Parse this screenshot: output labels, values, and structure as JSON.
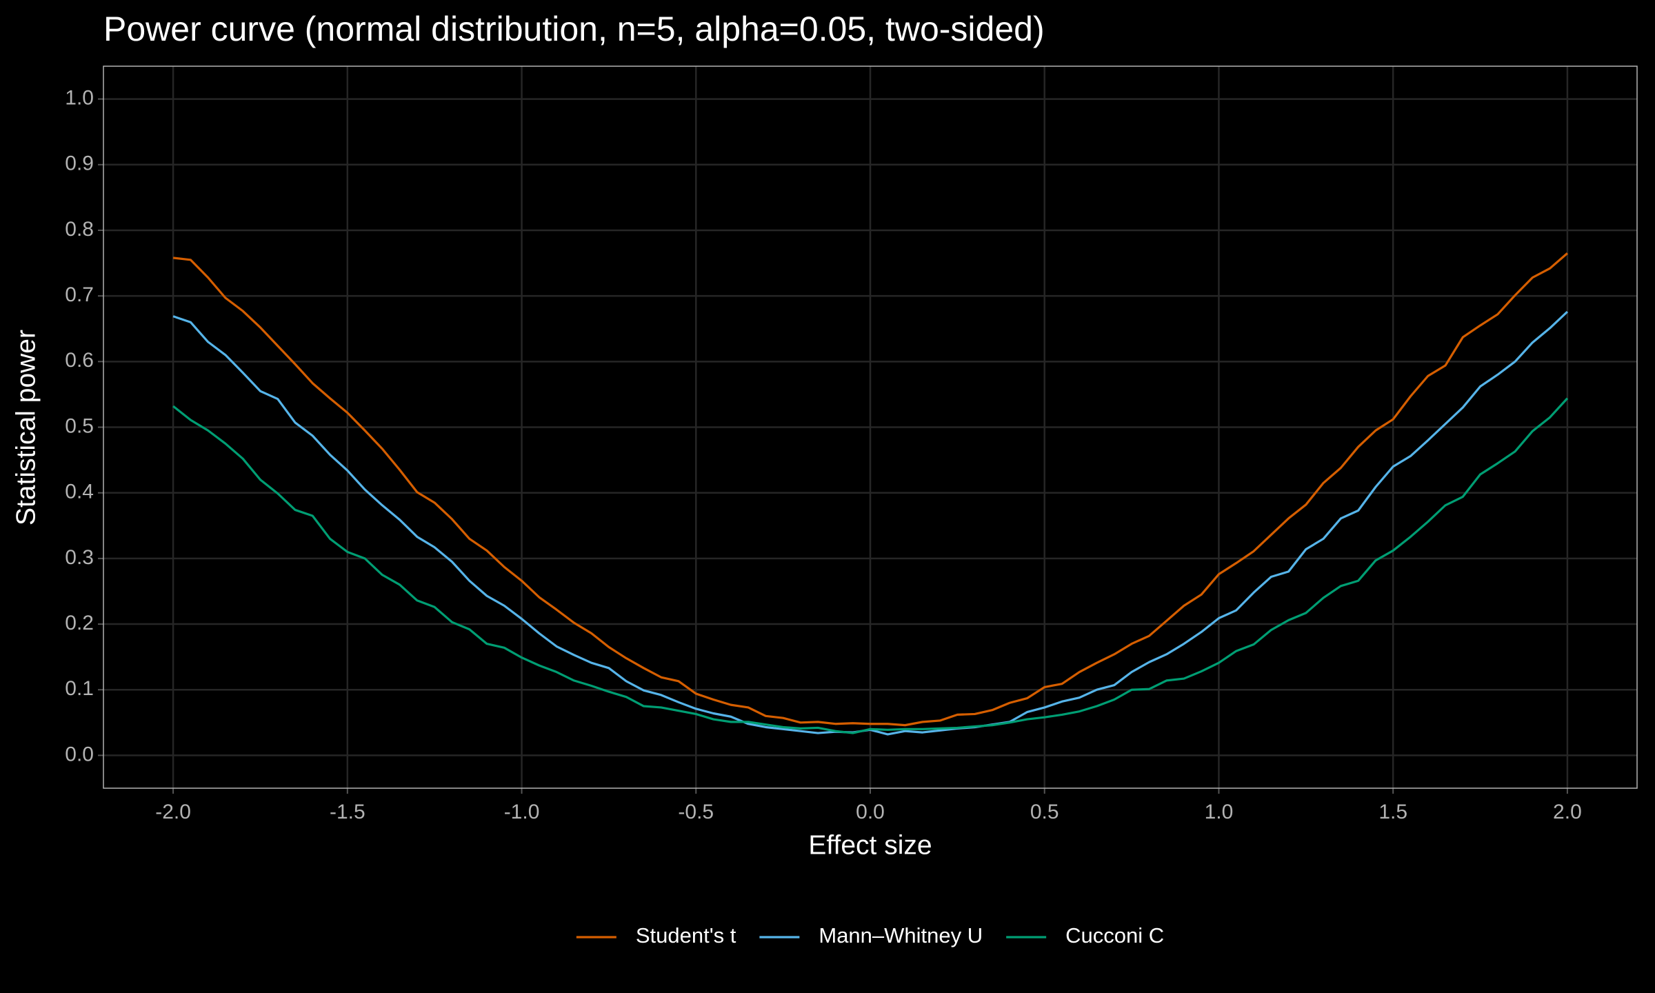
{
  "chart_data": {
    "type": "line",
    "title": "Power curve (normal distribution, n=5, alpha=0.05, two-sided)",
    "x_label": "Effect size",
    "y_label": "Statistical power",
    "x": [
      -2,
      -1.95,
      -1.9,
      -1.85,
      -1.8,
      -1.75,
      -1.7,
      -1.65,
      -1.6,
      -1.55,
      -1.5,
      -1.45,
      -1.4,
      -1.35,
      -1.3,
      -1.25,
      -1.2,
      -1.15,
      -1.1,
      -1.05,
      -1,
      -0.95,
      -0.9,
      -0.85,
      -0.8,
      -0.75,
      -0.7,
      -0.65,
      -0.6,
      -0.55,
      -0.5,
      -0.45,
      -0.4,
      -0.35,
      -0.3,
      -0.25,
      -0.2,
      -0.15,
      -0.1,
      -0.05,
      0,
      0.05,
      0.1,
      0.15,
      0.2,
      0.25,
      0.3,
      0.35,
      0.4,
      0.45,
      0.5,
      0.55,
      0.6,
      0.65,
      0.7,
      0.75,
      0.8,
      0.85,
      0.9,
      0.95,
      1,
      1.05,
      1.1,
      1.15,
      1.2,
      1.25,
      1.3,
      1.35,
      1.4,
      1.45,
      1.5,
      1.55,
      1.6,
      1.65,
      1.7,
      1.75,
      1.8,
      1.85,
      1.9,
      1.95,
      2
    ],
    "series": [
      {
        "name": "Student's t",
        "color": "#d55e00",
        "values": [
          0.758,
          0.755,
          0.728,
          0.697,
          0.677,
          0.652,
          0.624,
          0.596,
          0.567,
          0.544,
          0.522,
          0.495,
          0.467,
          0.435,
          0.401,
          0.385,
          0.36,
          0.33,
          0.312,
          0.287,
          0.266,
          0.241,
          0.222,
          0.202,
          0.186,
          0.165,
          0.148,
          0.133,
          0.119,
          0.113,
          0.094,
          0.085,
          0.077,
          0.073,
          0.06,
          0.057,
          0.05,
          0.051,
          0.048,
          0.049,
          0.048,
          0.048,
          0.046,
          0.051,
          0.053,
          0.062,
          0.063,
          0.069,
          0.08,
          0.087,
          0.104,
          0.109,
          0.127,
          0.141,
          0.154,
          0.17,
          0.182,
          0.205,
          0.228,
          0.245,
          0.276,
          0.293,
          0.311,
          0.336,
          0.361,
          0.382,
          0.415,
          0.438,
          0.47,
          0.495,
          0.512,
          0.547,
          0.578,
          0.594,
          0.637,
          0.655,
          0.672,
          0.701,
          0.728,
          0.742,
          0.765
        ]
      },
      {
        "name": "Mann–Whitney U",
        "color": "#56b4e9",
        "values": [
          0.669,
          0.66,
          0.63,
          0.61,
          0.583,
          0.555,
          0.543,
          0.507,
          0.487,
          0.458,
          0.434,
          0.405,
          0.381,
          0.359,
          0.333,
          0.317,
          0.295,
          0.266,
          0.243,
          0.228,
          0.208,
          0.186,
          0.166,
          0.153,
          0.141,
          0.133,
          0.113,
          0.099,
          0.092,
          0.081,
          0.071,
          0.064,
          0.059,
          0.048,
          0.043,
          0.04,
          0.037,
          0.034,
          0.036,
          0.035,
          0.039,
          0.032,
          0.037,
          0.035,
          0.038,
          0.041,
          0.043,
          0.047,
          0.051,
          0.066,
          0.073,
          0.082,
          0.088,
          0.1,
          0.107,
          0.127,
          0.142,
          0.154,
          0.17,
          0.188,
          0.209,
          0.221,
          0.248,
          0.272,
          0.28,
          0.314,
          0.33,
          0.361,
          0.373,
          0.409,
          0.44,
          0.456,
          0.48,
          0.505,
          0.53,
          0.562,
          0.58,
          0.6,
          0.629,
          0.651,
          0.676
        ]
      },
      {
        "name": "Cucconi C",
        "color": "#009e73",
        "values": [
          0.532,
          0.511,
          0.495,
          0.475,
          0.452,
          0.42,
          0.399,
          0.374,
          0.365,
          0.33,
          0.31,
          0.3,
          0.275,
          0.26,
          0.236,
          0.226,
          0.203,
          0.192,
          0.17,
          0.164,
          0.149,
          0.137,
          0.127,
          0.114,
          0.106,
          0.097,
          0.089,
          0.075,
          0.073,
          0.068,
          0.063,
          0.055,
          0.051,
          0.051,
          0.047,
          0.043,
          0.041,
          0.042,
          0.037,
          0.034,
          0.04,
          0.039,
          0.04,
          0.04,
          0.041,
          0.042,
          0.044,
          0.046,
          0.05,
          0.055,
          0.058,
          0.062,
          0.067,
          0.075,
          0.085,
          0.1,
          0.101,
          0.114,
          0.117,
          0.128,
          0.141,
          0.159,
          0.169,
          0.191,
          0.206,
          0.217,
          0.24,
          0.258,
          0.266,
          0.297,
          0.312,
          0.333,
          0.356,
          0.381,
          0.394,
          0.428,
          0.445,
          0.463,
          0.494,
          0.515,
          0.544
        ]
      }
    ],
    "xlim": [
      -2.2,
      2.2
    ],
    "xticks": [
      {
        "value": -2,
        "label": "-2.0"
      },
      {
        "value": -1.5,
        "label": "-1.5"
      },
      {
        "value": -1,
        "label": "-1.0"
      },
      {
        "value": -0.5,
        "label": "-0.5"
      },
      {
        "value": 0,
        "label": "0.0"
      },
      {
        "value": 0.5,
        "label": "0.5"
      },
      {
        "value": 1,
        "label": "1.0"
      },
      {
        "value": 1.5,
        "label": "1.5"
      },
      {
        "value": 2,
        "label": "2.0"
      }
    ],
    "ylim": [
      -0.05,
      1.05
    ],
    "yticks": [
      {
        "value": 0,
        "label": "0.0"
      },
      0.1,
      0.2,
      0.3,
      0.4,
      0.5,
      0.6,
      0.7,
      0.8,
      0.9,
      {
        "value": 1,
        "label": "1.0"
      }
    ],
    "grid": true,
    "legend": "bottom"
  }
}
